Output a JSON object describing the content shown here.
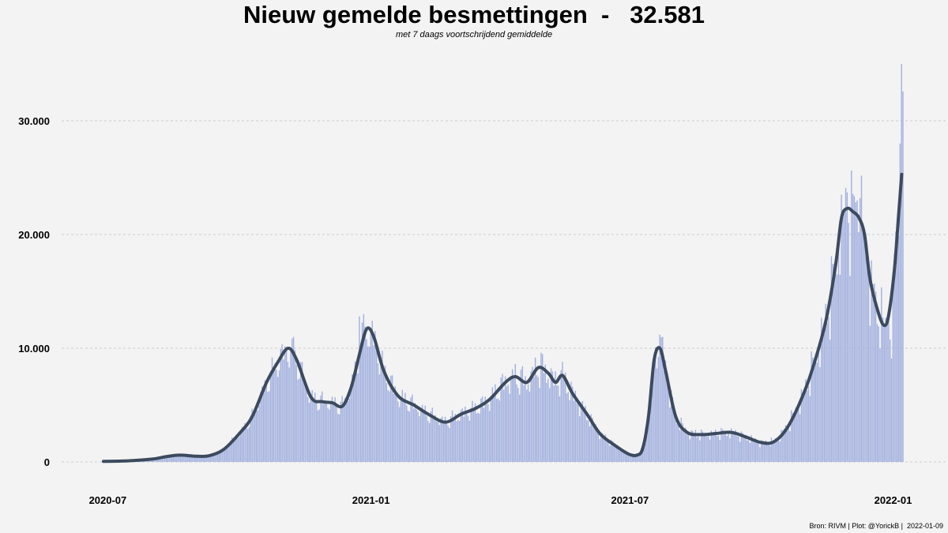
{
  "chart_data": {
    "type": "bar",
    "title": "Nieuw gemelde besmettingen  -   32.581",
    "subtitle": "met 7 daags voortschrijdend gemiddelde",
    "caption": "Bron: RIVM | Plot: @YorickB |  2022-01-09",
    "x_start": "2020-06-28",
    "x_end": "2022-01-09",
    "x_tick_labels": [
      "2020-07",
      "2021-01",
      "2021-07",
      "2022-01"
    ],
    "x_tick_dates": [
      "2020-07-01",
      "2021-01-01",
      "2021-07-01",
      "2022-01-01"
    ],
    "y_tick_labels": [
      "0",
      "10.000",
      "20.000",
      "30.000"
    ],
    "y_tick_values": [
      0,
      10000,
      20000,
      30000
    ],
    "ylim": [
      -2500,
      36500
    ],
    "grid": true,
    "colors": {
      "bars": "#a2b0df",
      "average_line": "#3c4a5e",
      "background": "#f3f3f3",
      "grid": "#cccccc"
    },
    "series": [
      {
        "type": "line",
        "points": [
          [
            "2020-06-28",
            50
          ],
          [
            "2020-07-15",
            100
          ],
          [
            "2020-08-01",
            250
          ],
          [
            "2020-08-10",
            450
          ],
          [
            "2020-08-20",
            600
          ],
          [
            "2020-09-01",
            500
          ],
          [
            "2020-09-10",
            550
          ],
          [
            "2020-09-20",
            1100
          ],
          [
            "2020-10-01",
            2500
          ],
          [
            "2020-10-10",
            4000
          ],
          [
            "2020-10-20",
            7000
          ],
          [
            "2020-10-28",
            8800
          ],
          [
            "2020-11-04",
            10000
          ],
          [
            "2020-11-10",
            9000
          ],
          [
            "2020-11-20",
            5700
          ],
          [
            "2020-11-28",
            5300
          ],
          [
            "2020-12-05",
            5200
          ],
          [
            "2020-12-12",
            4900
          ],
          [
            "2020-12-18",
            6500
          ],
          [
            "2020-12-24",
            9500
          ],
          [
            "2020-12-29",
            11700
          ],
          [
            "2021-01-03",
            11000
          ],
          [
            "2021-01-10",
            8000
          ],
          [
            "2021-01-20",
            5800
          ],
          [
            "2021-01-31",
            5000
          ],
          [
            "2021-02-10",
            4200
          ],
          [
            "2021-02-22",
            3500
          ],
          [
            "2021-03-05",
            4200
          ],
          [
            "2021-03-15",
            4700
          ],
          [
            "2021-03-25",
            5500
          ],
          [
            "2021-04-05",
            7000
          ],
          [
            "2021-04-12",
            7500
          ],
          [
            "2021-04-20",
            7000
          ],
          [
            "2021-04-28",
            8300
          ],
          [
            "2021-05-05",
            7800
          ],
          [
            "2021-05-10",
            7000
          ],
          [
            "2021-05-15",
            7600
          ],
          [
            "2021-05-22",
            6000
          ],
          [
            "2021-06-01",
            4200
          ],
          [
            "2021-06-10",
            2500
          ],
          [
            "2021-06-20",
            1500
          ],
          [
            "2021-06-30",
            700
          ],
          [
            "2021-07-06",
            600
          ],
          [
            "2021-07-10",
            1200
          ],
          [
            "2021-07-14",
            4000
          ],
          [
            "2021-07-18",
            9000
          ],
          [
            "2021-07-22",
            10000
          ],
          [
            "2021-07-26",
            8000
          ],
          [
            "2021-08-02",
            4000
          ],
          [
            "2021-08-10",
            2600
          ],
          [
            "2021-08-20",
            2400
          ],
          [
            "2021-08-30",
            2500
          ],
          [
            "2021-09-10",
            2600
          ],
          [
            "2021-09-20",
            2200
          ],
          [
            "2021-10-01",
            1700
          ],
          [
            "2021-10-10",
            1800
          ],
          [
            "2021-10-20",
            3200
          ],
          [
            "2021-11-01",
            6500
          ],
          [
            "2021-11-10",
            10000
          ],
          [
            "2021-11-16",
            13000
          ],
          [
            "2021-11-22",
            17500
          ],
          [
            "2021-11-26",
            21500
          ],
          [
            "2021-11-30",
            22300
          ],
          [
            "2021-12-04",
            22000
          ],
          [
            "2021-12-08",
            21500
          ],
          [
            "2021-12-12",
            20000
          ],
          [
            "2021-12-16",
            16000
          ],
          [
            "2021-12-22",
            13000
          ],
          [
            "2021-12-26",
            12000
          ],
          [
            "2021-12-29",
            13000
          ],
          [
            "2022-01-02",
            17000
          ],
          [
            "2022-01-05",
            22000
          ],
          [
            "2022-01-07",
            25300
          ]
        ]
      },
      {
        "type": "bar",
        "last_value": 32581,
        "spikes": [
          [
            "2020-11-08",
            11000
          ],
          [
            "2020-12-24",
            12800
          ],
          [
            "2020-12-27",
            13000
          ],
          [
            "2021-01-01",
            11300
          ],
          [
            "2021-04-30",
            9600
          ],
          [
            "2021-07-22",
            11200
          ],
          [
            "2021-07-24",
            11000
          ],
          [
            "2021-11-26",
            23500
          ],
          [
            "2021-11-30",
            23700
          ],
          [
            "2021-12-07",
            23000
          ],
          [
            "2021-12-09",
            23200
          ],
          [
            "2021-12-31",
            9100
          ],
          [
            "2022-01-06",
            28000
          ],
          [
            "2022-01-07",
            35000
          ],
          [
            "2022-01-08",
            32600
          ]
        ]
      }
    ]
  }
}
